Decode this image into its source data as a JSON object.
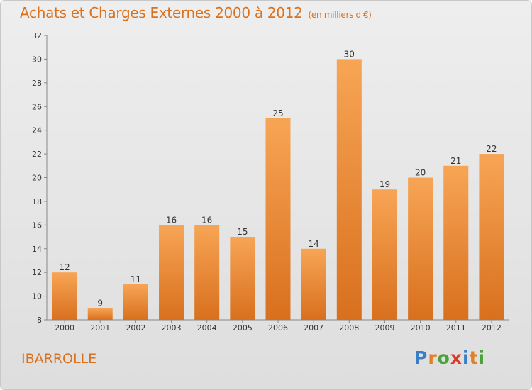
{
  "header": {
    "title": "Achats et Charges Externes 2000 à 2012",
    "subtitle": "(en milliers d'€)"
  },
  "footer": {
    "place": "IBARROLLE",
    "logo_letters": [
      {
        "ch": "P",
        "color": "#3a7fc4"
      },
      {
        "ch": "r",
        "color": "#e0812a"
      },
      {
        "ch": "o",
        "color": "#4aa33a"
      },
      {
        "ch": "x",
        "color": "#d93a2a"
      },
      {
        "ch": "i",
        "color": "#3a7fc4"
      },
      {
        "ch": "t",
        "color": "#e0812a"
      },
      {
        "ch": "i",
        "color": "#4aa33a"
      }
    ]
  },
  "chart_data": {
    "type": "bar",
    "title": "Achats et Charges Externes 2000 à 2012",
    "subtitle": "(en milliers d'€)",
    "categories": [
      "2000",
      "2001",
      "2002",
      "2003",
      "2004",
      "2005",
      "2006",
      "2007",
      "2008",
      "2009",
      "2010",
      "2011",
      "2012"
    ],
    "values": [
      12,
      9,
      11,
      16,
      16,
      15,
      25,
      14,
      30,
      19,
      20,
      21,
      22
    ],
    "ylim": [
      8,
      32
    ],
    "yticks": [
      8,
      10,
      12,
      14,
      16,
      18,
      20,
      22,
      24,
      26,
      28,
      30,
      32
    ],
    "grid": false,
    "bar_color_top": "#f7a555",
    "bar_color_bottom": "#d8701e"
  }
}
